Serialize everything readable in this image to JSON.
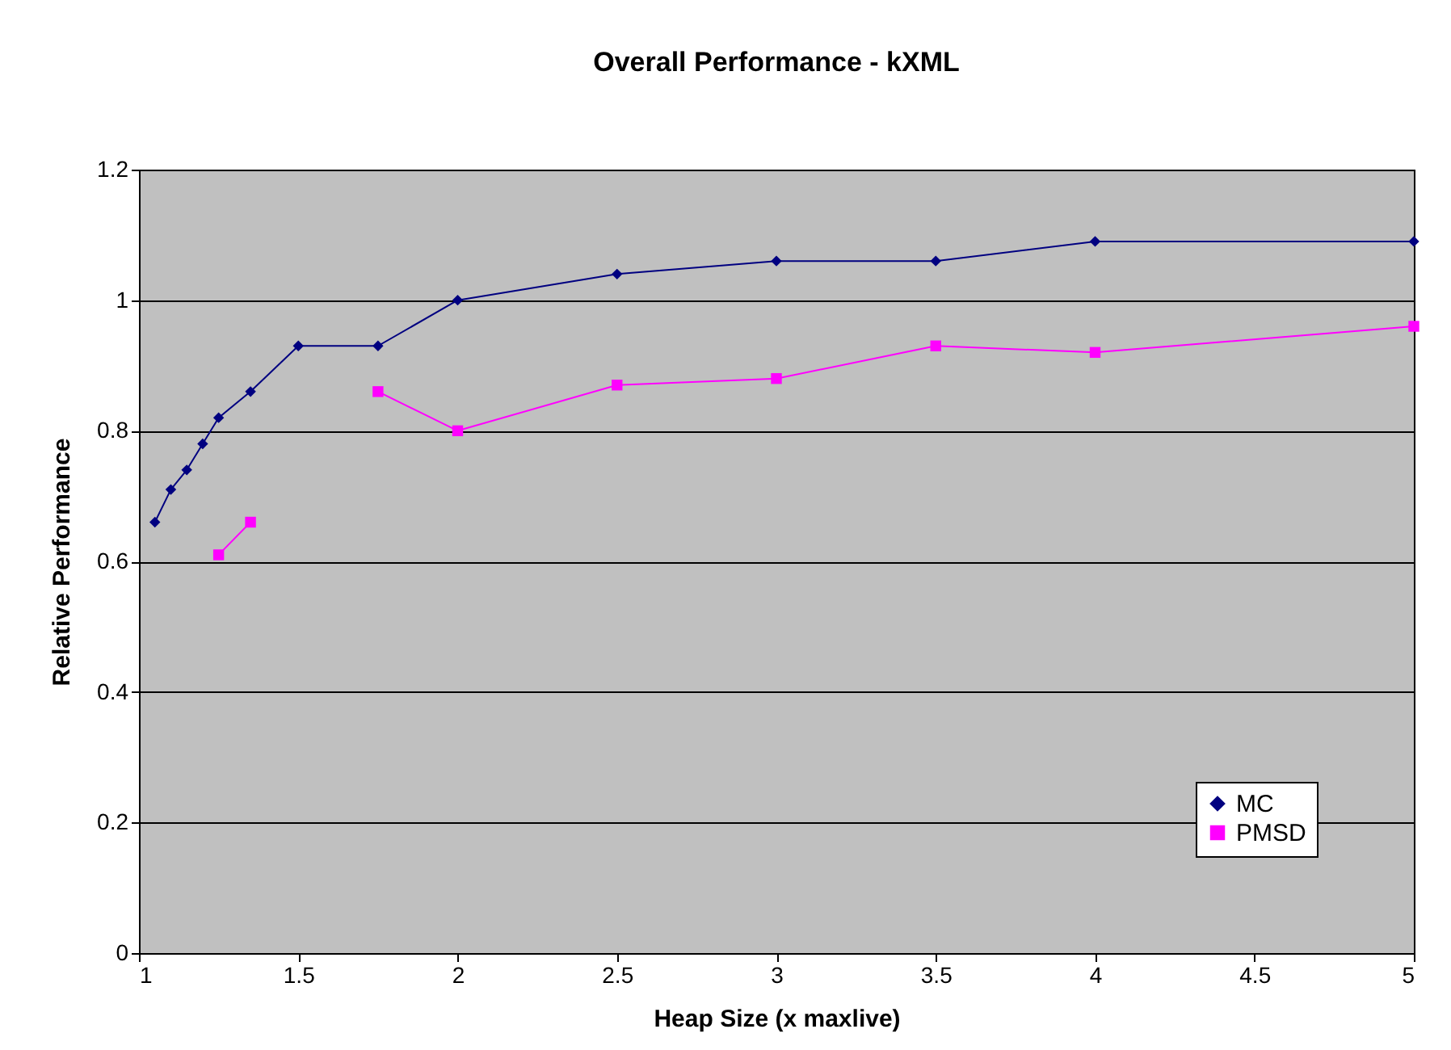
{
  "chart_data": {
    "type": "line",
    "title": "Overall Performance - kXML",
    "xlabel": "Heap Size (x maxlive)",
    "ylabel": "Relative Performance",
    "xlim": [
      1,
      5
    ],
    "xticks": [
      1,
      1.5,
      2,
      2.5,
      3,
      3.5,
      4,
      4.5,
      5
    ],
    "ylim": [
      0,
      1.2
    ],
    "yticks": [
      {
        "value": 0,
        "label": "0"
      },
      0.2,
      0.4,
      0.6,
      0.8,
      {
        "value": 1,
        "label": "1"
      },
      1.2
    ],
    "grid": "y",
    "legend": "bottom right",
    "series": [
      {
        "name": "MC",
        "color": "#000080",
        "marker": "diamond",
        "x": [
          1.05,
          1.1,
          1.15,
          1.2,
          1.25,
          1.35,
          1.5,
          1.75,
          2,
          2.5,
          3,
          3.5,
          4,
          5
        ],
        "values": [
          0.66,
          0.71,
          0.74,
          0.78,
          0.82,
          0.86,
          0.93,
          0.93,
          1.0,
          1.04,
          1.06,
          1.06,
          1.09,
          1.09
        ]
      },
      {
        "name": "PMSD",
        "color": "#ff00ff",
        "marker": "square",
        "x": [
          1.25,
          1.35,
          1.5,
          1.75,
          2,
          2.5,
          3,
          3.5,
          4,
          5
        ],
        "values": [
          0.61,
          0.66,
          null,
          0.86,
          0.8,
          0.87,
          0.88,
          0.93,
          0.92,
          0.96
        ]
      }
    ]
  }
}
